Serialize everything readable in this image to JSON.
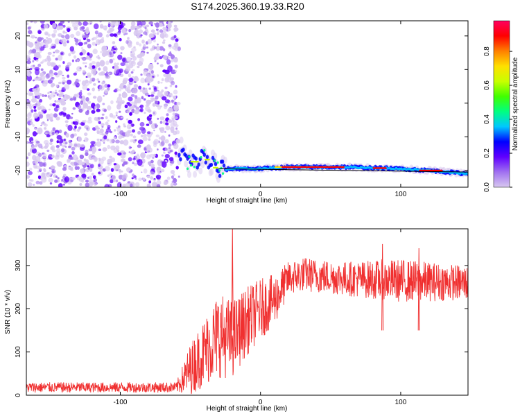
{
  "title": "S174.2025.360.19.33.R20",
  "chart_data": [
    {
      "type": "heatmap",
      "xlabel": "Height of straight line (km)",
      "ylabel": "Frequency (Hz)",
      "xlim": [
        -167,
        148
      ],
      "ylim": [
        -25,
        24.5
      ],
      "xticks": [
        -100,
        0,
        100
      ],
      "yticks": [
        20,
        10,
        0,
        -10,
        -20
      ],
      "noise_region_x": [
        -167,
        -58
      ],
      "trace": {
        "x": [
          -58,
          -50,
          -40,
          -30,
          -20,
          0,
          20,
          60,
          100,
          120,
          148
        ],
        "frequency": [
          -14,
          -18,
          -16,
          -20,
          -19.5,
          -19.5,
          -19,
          -19,
          -19.5,
          -20,
          -21
        ]
      },
      "colorbar": {
        "label": "Normalized spectral amplitude",
        "range": [
          0,
          0.98
        ],
        "ticks": [
          0.0,
          0.2,
          0.4,
          0.6,
          0.8
        ],
        "tick_labels": [
          "0.0",
          "0.2",
          "0.4",
          "0.6",
          "0.8"
        ],
        "colormap": [
          "#d8c8f0",
          "#a070f0",
          "#6000ff",
          "#0000ff",
          "#00c8ff",
          "#00ff80",
          "#40ff00",
          "#c8ff00",
          "#ffe000",
          "#ff8000",
          "#ff0000",
          "#ff0060"
        ]
      }
    },
    {
      "type": "line",
      "xlabel": "Height of straight line (km)",
      "ylabel": "SNR (10 * v/v)",
      "xlim": [
        -167,
        148
      ],
      "ylim": [
        0,
        385
      ],
      "xticks": [
        -100,
        0,
        100
      ],
      "yticks": [
        0,
        100,
        200,
        300
      ],
      "color": "#f03030",
      "series": [
        {
          "name": "SNR",
          "envelope_x": [
            -167,
            -60,
            -50,
            -40,
            -30,
            -20,
            -10,
            0,
            10,
            20,
            30,
            60,
            100,
            148
          ],
          "envelope_mean": [
            18,
            18,
            60,
            100,
            140,
            130,
            170,
            200,
            220,
            270,
            280,
            270,
            265,
            260
          ],
          "envelope_noise": [
            12,
            12,
            60,
            80,
            100,
            90,
            80,
            70,
            60,
            40,
            40,
            40,
            50,
            40
          ],
          "spikes": [
            {
              "x": -20,
              "y": 385
            },
            {
              "x": 87,
              "y": 350
            },
            {
              "x": 113,
              "y": 340
            }
          ]
        }
      ]
    }
  ]
}
